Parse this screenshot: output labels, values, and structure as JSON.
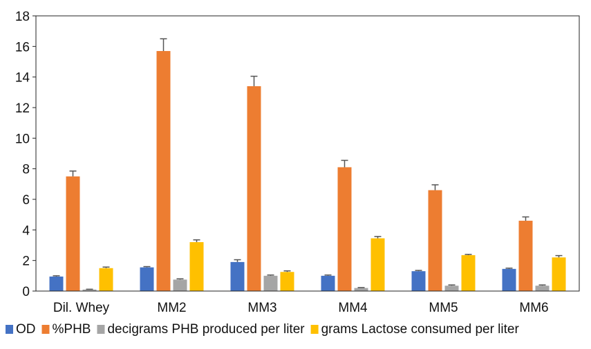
{
  "chart_data": {
    "type": "bar",
    "categories": [
      "Dil. Whey",
      "MM2",
      "MM3",
      "MM4",
      "MM5",
      "MM6"
    ],
    "series": [
      {
        "name": "OD",
        "color": "#4472C4",
        "values": [
          0.95,
          1.55,
          1.9,
          1.0,
          1.3,
          1.45
        ],
        "errors": [
          0.05,
          0.05,
          0.15,
          0.05,
          0.05,
          0.05
        ]
      },
      {
        "name": "%PHB",
        "color": "#ED7D31",
        "values": [
          7.5,
          15.7,
          13.4,
          8.1,
          6.6,
          4.6
        ],
        "errors": [
          0.35,
          0.8,
          0.65,
          0.45,
          0.35,
          0.25
        ]
      },
      {
        "name": "decigrams PHB produced per liter",
        "color": "#A5A5A5",
        "values": [
          0.1,
          0.75,
          1.0,
          0.2,
          0.35,
          0.35
        ],
        "errors": [
          0.02,
          0.05,
          0.05,
          0.03,
          0.05,
          0.05
        ]
      },
      {
        "name": "grams Lactose consumed per liter",
        "color": "#FFC000",
        "values": [
          1.5,
          3.2,
          1.25,
          3.45,
          2.35,
          2.2
        ],
        "errors": [
          0.07,
          0.15,
          0.07,
          0.12,
          0.05,
          0.12
        ]
      }
    ],
    "yticks": [
      0,
      2,
      4,
      6,
      8,
      10,
      12,
      14,
      16,
      18
    ],
    "ylim": [
      0,
      18
    ],
    "title": "",
    "xlabel": "",
    "ylabel": "",
    "grid": false,
    "legend_position": "bottom"
  }
}
